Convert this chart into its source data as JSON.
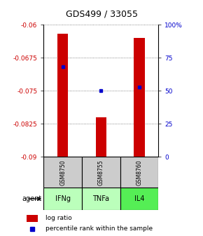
{
  "title": "GDS499 / 33055",
  "samples": [
    "GSM8750",
    "GSM8755",
    "GSM8760"
  ],
  "agents": [
    "IFNg",
    "TNFa",
    "IL4"
  ],
  "bar_tops": [
    -0.062,
    -0.081,
    -0.063
  ],
  "bar_base": -0.09,
  "percentile_values": [
    0.68,
    0.5,
    0.53
  ],
  "ylim_left": [
    -0.09,
    -0.06
  ],
  "ylim_right": [
    0,
    1
  ],
  "yticks_left": [
    -0.09,
    -0.0825,
    -0.075,
    -0.0675,
    -0.06
  ],
  "ytick_labels_left": [
    "-0.09",
    "-0.0825",
    "-0.075",
    "-0.0675",
    "-0.06"
  ],
  "yticks_right": [
    0.0,
    0.25,
    0.5,
    0.75,
    1.0
  ],
  "ytick_labels_right": [
    "0",
    "25",
    "50",
    "75",
    "100%"
  ],
  "bar_color": "#cc0000",
  "dot_color": "#0000cc",
  "bar_width": 0.28,
  "left_axis_color": "#cc0000",
  "right_axis_color": "#0000cc",
  "grid_color": "#666666",
  "sample_box_color": "#cccccc",
  "agent_box_colors": [
    "#bbffbb",
    "#bbffbb",
    "#55ee55"
  ],
  "agent_label": "agent",
  "legend_bar_label": "log ratio",
  "legend_dot_label": "percentile rank within the sample"
}
